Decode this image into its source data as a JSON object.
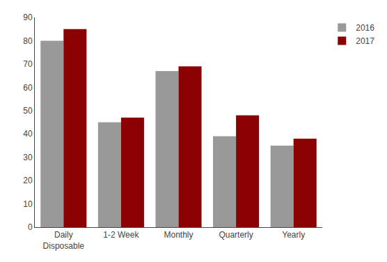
{
  "chart_data": {
    "type": "bar",
    "categories": [
      "Daily\nDisposable",
      "1-2 Week",
      "Monthly",
      "Quarterly",
      "Yearly"
    ],
    "series": [
      {
        "name": "2016",
        "color": "#999999",
        "values": [
          80,
          45,
          67,
          39,
          35
        ]
      },
      {
        "name": "2017",
        "color": "#8B0000",
        "values": [
          85,
          47,
          69,
          48,
          38
        ]
      }
    ],
    "ylim": [
      0,
      90
    ],
    "yticks": [
      0,
      10,
      20,
      30,
      40,
      50,
      60,
      70,
      80,
      90
    ],
    "grid": false,
    "legend": "upper right"
  }
}
